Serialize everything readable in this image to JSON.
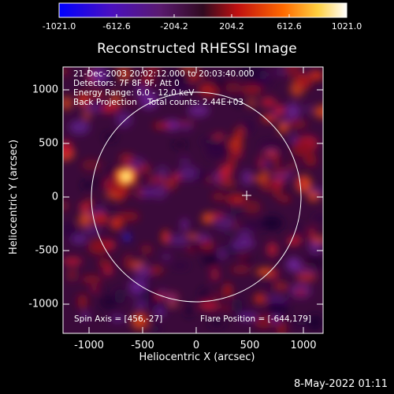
{
  "colorbar": {
    "ticks": [
      "-1021.0",
      "-612.6",
      "-204.2",
      "204.2",
      "612.6",
      "1021.0"
    ],
    "min": -1021.0,
    "max": 1021.0,
    "colors": [
      "#0000ff",
      "#5a0fb0",
      "#2a0a40",
      "#cc1010",
      "#ff7a00",
      "#ffff80",
      "#ffffff"
    ]
  },
  "plot": {
    "title": "Reconstructed RHESSI Image",
    "xlabel": "Heliocentric X (arcsec)",
    "ylabel": "Heliocentric Y (arcsec)",
    "xticks": [
      "-1000",
      "-500",
      "0",
      "500",
      "1000"
    ],
    "yticks": [
      "1000",
      "500",
      "0",
      "-500",
      "-1000"
    ],
    "xlim": [
      -1290,
      1290
    ],
    "ylim": [
      -1250,
      1250
    ]
  },
  "info": {
    "line1": "21-Dec-2003 20:02:12.000 to 20:03:40.000",
    "line2": "Detectors: 7F 8F 9F, Att 0",
    "line3": "Energy Range: 6.0 - 12.0 keV",
    "line4": "Back Projection    Total counts: 2.44E+03"
  },
  "footer": {
    "spin_axis": "Spin Axis = [456,-27]",
    "flare_position": "Flare Position = [-644,179]"
  },
  "overlays": {
    "solar_limb_radius_arcsec": 975,
    "spin_axis_marker": [
      456,
      -27
    ],
    "bright_source": [
      -644,
      179
    ]
  },
  "date_stamp": "8-May-2022 01:11"
}
